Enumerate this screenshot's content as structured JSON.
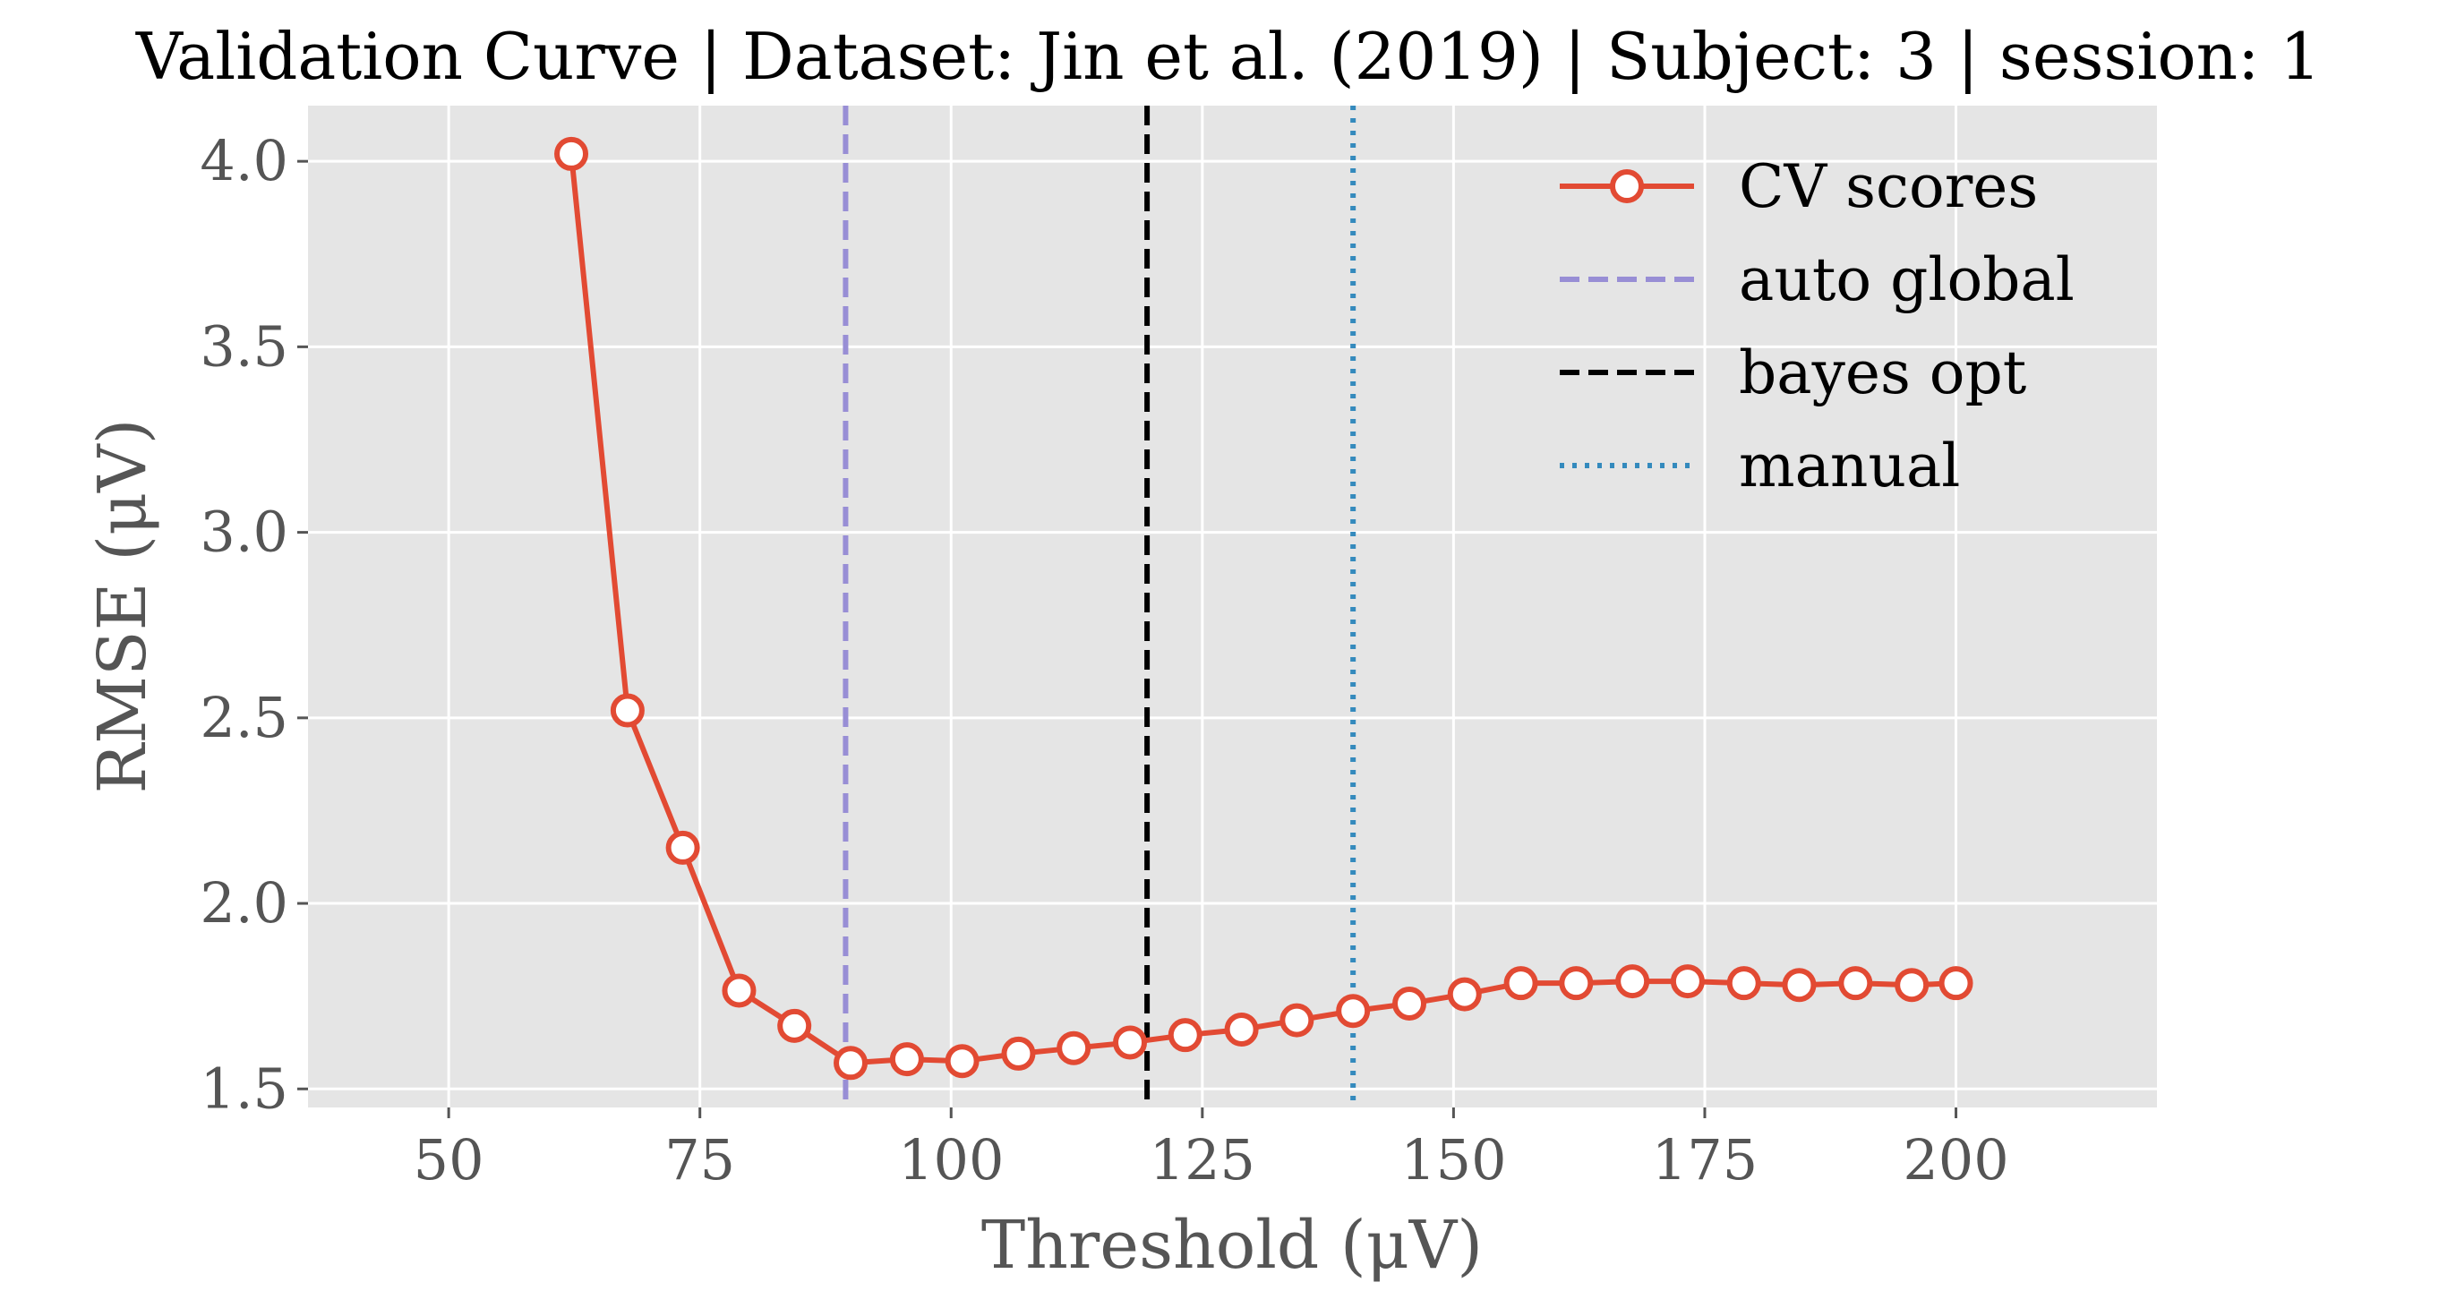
{
  "chart_data": {
    "type": "line",
    "title": "Validation Curve | Dataset: Jin et al. (2019) | Subject: 3 | session: 1",
    "xlabel": "Threshold (μV)",
    "ylabel": "RMSE (μV)",
    "xlim": [
      36,
      220
    ],
    "ylim": [
      1.45,
      4.15
    ],
    "xticks": [
      50,
      75,
      100,
      125,
      150,
      175,
      200
    ],
    "xtick_labels": [
      "50",
      "75",
      "100",
      "125",
      "150",
      "175",
      "200"
    ],
    "yticks": [
      1.5,
      2.0,
      2.5,
      3.0,
      3.5,
      4.0
    ],
    "ytick_labels": [
      "1.5",
      "2.0",
      "2.5",
      "3.0",
      "3.5",
      "4.0"
    ],
    "grid": true,
    "legend_position": "top-right",
    "series": [
      {
        "name": "CV scores",
        "color": "#e24a33",
        "marker": "circle-open",
        "x": [
          62.2,
          67.8,
          73.3,
          78.9,
          84.4,
          90.0,
          95.6,
          101.1,
          106.7,
          112.2,
          117.8,
          123.3,
          128.9,
          134.4,
          140.0,
          145.6,
          151.1,
          156.7,
          162.2,
          167.8,
          173.3,
          178.9,
          184.4,
          190.0,
          195.6,
          200.0
        ],
        "y": [
          4.02,
          2.52,
          2.15,
          1.765,
          1.67,
          1.57,
          1.58,
          1.575,
          1.595,
          1.61,
          1.625,
          1.645,
          1.66,
          1.685,
          1.71,
          1.73,
          1.755,
          1.785,
          1.785,
          1.79,
          1.79,
          1.785,
          1.78,
          1.785,
          1.78,
          1.785
        ]
      }
    ],
    "vlines": [
      {
        "name": "auto global",
        "x": 89.5,
        "color": "#988ed5",
        "style": "dashed"
      },
      {
        "name": "bayes opt",
        "x": 119.5,
        "color": "#000000",
        "style": "dashed"
      },
      {
        "name": "manual",
        "x": 140.0,
        "color": "#348abd",
        "style": "dotted"
      }
    ]
  }
}
